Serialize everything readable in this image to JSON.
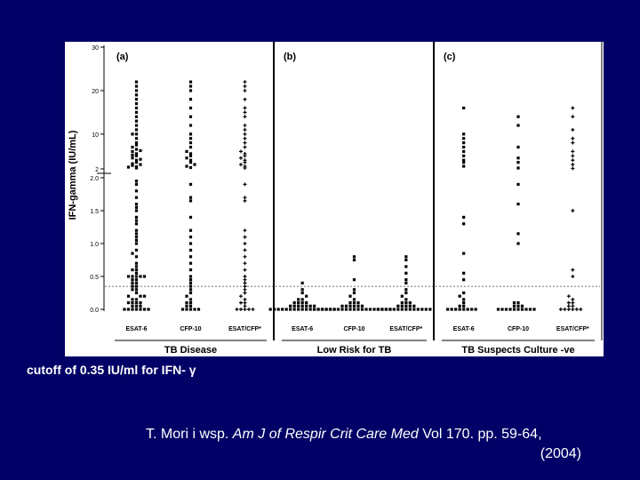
{
  "slide": {
    "background": "#000066",
    "cutoff_note": "cutoff of 0.35 IU/ml for IFN- γ",
    "citation": {
      "authors": "T. Mori i wsp.",
      "journal": "Am J of Respir Crit Care Med",
      "volume": "Vol 170. pp. 59-64,",
      "year": "(2004)"
    }
  },
  "chart_data": {
    "type": "scatter",
    "ylabel": "IFN-gamma (IU/mL)",
    "yticks": [
      "0.0",
      "0.5",
      "1.0",
      "1.5",
      "2.0",
      "2",
      "10",
      "20",
      "30"
    ],
    "y_scale": "broken: linear 0–2.0 below, 2–30 above",
    "cutoff": 0.35,
    "panels": [
      {
        "label": "(a)",
        "group": "TB Disease",
        "categories": [
          "ESAT-6",
          "CFP-10",
          "ESAT/CFP*"
        ],
        "series": [
          {
            "category": "ESAT-6",
            "marker": "square",
            "values": [
              0.0,
              0.0,
              0.0,
              0.0,
              0.0,
              0.0,
              0.0,
              0.05,
              0.05,
              0.05,
              0.1,
              0.1,
              0.1,
              0.1,
              0.15,
              0.15,
              0.2,
              0.2,
              0.2,
              0.25,
              0.3,
              0.3,
              0.35,
              0.35,
              0.4,
              0.4,
              0.45,
              0.45,
              0.5,
              0.5,
              0.5,
              0.5,
              0.5,
              0.55,
              0.6,
              0.6,
              0.65,
              0.7,
              0.8,
              0.85,
              0.9,
              1.0,
              1.05,
              1.1,
              1.15,
              1.2,
              1.3,
              1.35,
              1.4,
              1.5,
              1.55,
              1.6,
              1.7,
              1.8,
              1.9,
              1.95,
              2.2,
              2.5,
              2.8,
              3.0,
              3.5,
              4,
              4.5,
              5,
              5.5,
              6,
              6.5,
              7,
              8,
              9,
              10,
              10,
              11,
              12,
              13,
              14,
              15,
              16,
              17,
              18,
              19,
              20,
              21,
              22,
              2.4,
              3.2,
              4.2,
              5.2,
              6.2,
              7.5
            ]
          },
          {
            "category": "CFP-10",
            "marker": "square",
            "values": [
              0.0,
              0.0,
              0.0,
              0.0,
              0.0,
              0.05,
              0.05,
              0.1,
              0.1,
              0.15,
              0.2,
              0.25,
              0.3,
              0.35,
              0.4,
              0.45,
              0.5,
              0.6,
              0.7,
              0.8,
              0.9,
              1.0,
              1.1,
              1.2,
              1.4,
              1.65,
              1.7,
              1.9,
              2.3,
              2.6,
              3,
              3.5,
              4,
              4.5,
              5,
              5.5,
              6,
              7,
              8,
              9,
              10,
              12,
              14,
              16,
              18,
              20,
              21,
              22
            ]
          },
          {
            "category": "ESAT/CFP*",
            "marker": "plus",
            "values": [
              0.0,
              0.0,
              0.0,
              0.0,
              0.0,
              0.05,
              0.1,
              0.1,
              0.15,
              0.2,
              0.25,
              0.3,
              0.35,
              0.4,
              0.45,
              0.5,
              0.6,
              0.7,
              0.8,
              0.9,
              1.0,
              1.1,
              1.2,
              1.65,
              1.7,
              1.9,
              2.2,
              2.6,
              3,
              3.5,
              4,
              4.5,
              5,
              5.5,
              6,
              7,
              8,
              9,
              10,
              11,
              12,
              14,
              15,
              16,
              18,
              20,
              21,
              22
            ]
          }
        ]
      },
      {
        "label": "(b)",
        "group": "Low Risk for TB",
        "categories": [
          "ESAT-6",
          "CFP-10",
          "ESAT/CFP*"
        ],
        "series": [
          {
            "category": "ESAT-6",
            "marker": "square",
            "values": [
              0.0,
              0.0,
              0.0,
              0.0,
              0.0,
              0.0,
              0.0,
              0.0,
              0.0,
              0.0,
              0.0,
              0.0,
              0.0,
              0.0,
              0.0,
              0.0,
              0.0,
              0.05,
              0.05,
              0.05,
              0.05,
              0.05,
              0.05,
              0.05,
              0.1,
              0.1,
              0.1,
              0.1,
              0.15,
              0.15,
              0.2,
              0.25,
              0.3,
              0.4
            ]
          },
          {
            "category": "CFP-10",
            "marker": "square",
            "values": [
              0.0,
              0.0,
              0.0,
              0.0,
              0.0,
              0.0,
              0.0,
              0.0,
              0.0,
              0.0,
              0.0,
              0.0,
              0.0,
              0.0,
              0.0,
              0.0,
              0.0,
              0.0,
              0.0,
              0.0,
              0.05,
              0.05,
              0.05,
              0.05,
              0.05,
              0.05,
              0.1,
              0.1,
              0.1,
              0.15,
              0.2,
              0.25,
              0.3,
              0.45,
              0.75,
              0.8
            ]
          },
          {
            "category": "ESAT/CFP*",
            "marker": "square",
            "values": [
              0.0,
              0.0,
              0.0,
              0.0,
              0.0,
              0.0,
              0.0,
              0.0,
              0.0,
              0.0,
              0.0,
              0.0,
              0.0,
              0.0,
              0.05,
              0.05,
              0.05,
              0.05,
              0.05,
              0.1,
              0.1,
              0.1,
              0.15,
              0.2,
              0.25,
              0.3,
              0.4,
              0.45,
              0.55,
              0.65,
              0.75,
              0.8
            ]
          }
        ]
      },
      {
        "label": "(c)",
        "group": "TB Suspects Culture -ve",
        "categories": [
          "ESAT-6",
          "CFP-10",
          "ESAT/CFP*"
        ],
        "series": [
          {
            "category": "ESAT-6",
            "marker": "square",
            "values": [
              0.0,
              0.0,
              0.0,
              0.0,
              0.0,
              0.0,
              0.0,
              0.0,
              0.05,
              0.05,
              0.1,
              0.15,
              0.2,
              0.25,
              0.45,
              0.55,
              0.85,
              1.3,
              1.4,
              2.6,
              3.5,
              4,
              5,
              6,
              7,
              8,
              9,
              10,
              16
            ]
          },
          {
            "category": "CFP-10",
            "marker": "square",
            "values": [
              0.0,
              0.0,
              0.0,
              0.0,
              0.0,
              0.0,
              0.0,
              0.0,
              0.0,
              0.0,
              0.05,
              0.05,
              0.05,
              0.1,
              0.1,
              1.0,
              1.15,
              1.6,
              1.9,
              2.2,
              3.5,
              4.5,
              7,
              12,
              14
            ]
          },
          {
            "category": "ESAT/CFP*",
            "marker": "plus",
            "values": [
              0.0,
              0.0,
              0.0,
              0.0,
              0.0,
              0.0,
              0.05,
              0.05,
              0.1,
              0.1,
              0.15,
              0.2,
              0.5,
              0.6,
              1.5,
              2.1,
              3,
              4,
              5,
              6,
              8,
              9,
              11,
              14,
              16
            ]
          }
        ]
      }
    ]
  }
}
